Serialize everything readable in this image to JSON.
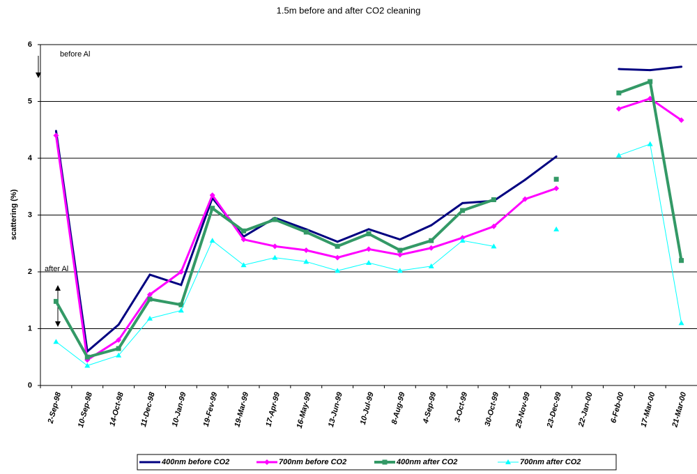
{
  "chart_data": {
    "type": "line",
    "title": "1.5m before and after CO2 cleaning",
    "y_label": "scattering (%)",
    "annotations": [
      "before Al",
      "after Al"
    ],
    "categories": [
      "2-Sep-98",
      "10-Sep-98",
      "14-Oct-98",
      "11-Dec-98",
      "10-Jan-99",
      "19-Fev-99",
      "19-Mar-99",
      "17-Apr-99",
      "16-May-99",
      "13-Jun-99",
      "10-Jul-99",
      "8-Aug-99",
      "4-Sep-99",
      "3-Oct-99",
      "30-Oct-99",
      "29-Nov-99",
      "23-Dec-99",
      "22-Jan-00",
      "6-Feb-00",
      "17-Mar-00",
      "21-Mar-00"
    ],
    "series": [
      {
        "name": "400nm before CO2",
        "color": "#000080",
        "values": [
          4.48,
          0.6,
          1.07,
          1.95,
          1.77,
          3.3,
          2.62,
          2.95,
          2.75,
          2.53,
          2.75,
          2.57,
          2.82,
          3.21,
          3.25,
          3.62,
          4.03,
          null,
          5.57,
          5.55,
          5.61
        ]
      },
      {
        "name": "700nm before CO2",
        "color": "#ff00ff",
        "values": [
          4.4,
          0.45,
          0.8,
          1.6,
          2.0,
          3.35,
          2.57,
          2.45,
          2.38,
          2.25,
          2.4,
          2.3,
          2.42,
          2.6,
          2.8,
          3.28,
          3.47,
          null,
          4.87,
          5.05,
          4.67
        ]
      },
      {
        "name": "400nm after CO2",
        "color": "#339966",
        "values": [
          1.48,
          0.5,
          0.65,
          1.52,
          1.42,
          3.12,
          2.72,
          2.92,
          2.7,
          2.45,
          2.67,
          2.38,
          2.55,
          3.08,
          3.27,
          null,
          3.63,
          null,
          5.15,
          5.35,
          2.2
        ]
      },
      {
        "name": "700nm after CO2",
        "color": "#00ffff",
        "values": [
          0.77,
          0.35,
          0.53,
          1.18,
          1.32,
          2.55,
          2.12,
          2.25,
          2.18,
          2.02,
          2.16,
          2.02,
          2.1,
          2.55,
          2.45,
          null,
          2.75,
          null,
          4.05,
          4.25,
          1.1
        ]
      }
    ],
    "ylim": [
      0,
      6
    ],
    "yticks": [
      0,
      1,
      2,
      3,
      4,
      5,
      6
    ],
    "grid": true,
    "legend": "bottom"
  }
}
